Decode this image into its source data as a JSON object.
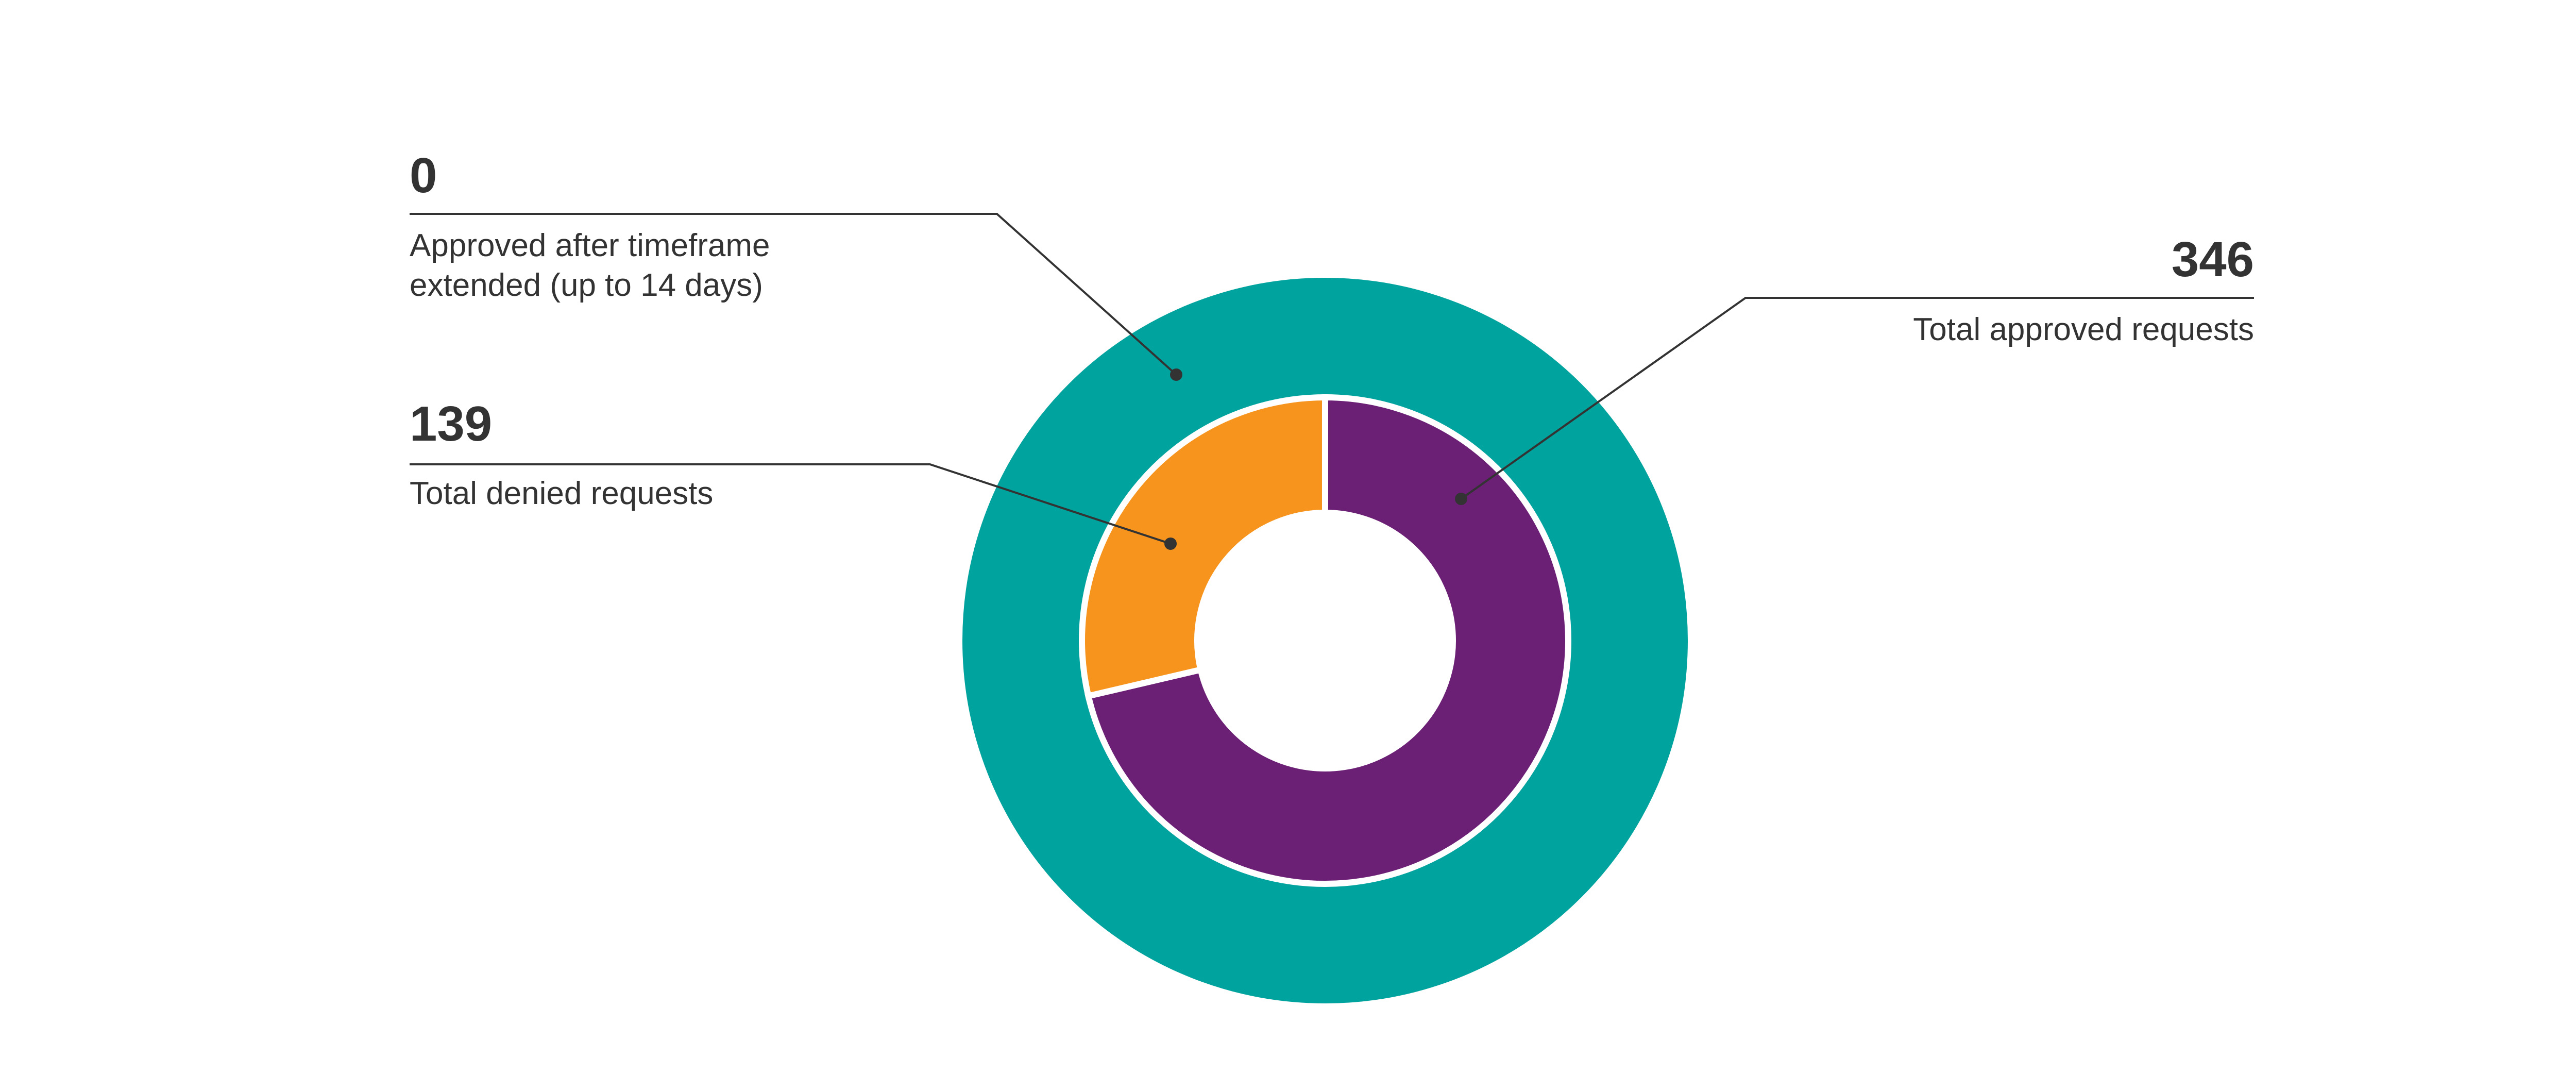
{
  "chart_data": {
    "type": "pie",
    "subtype": "nested-donut",
    "title": "",
    "rings": [
      {
        "ring": "outer",
        "slices": [
          {
            "label": "Approved after timeframe extended (up to 14 days)",
            "value": 0,
            "color": "#00A39D"
          }
        ],
        "filled_color": "#00A39D"
      },
      {
        "ring": "inner",
        "slices": [
          {
            "label": "Total approved requests",
            "value": 346,
            "color": "#6B1F75"
          },
          {
            "label": "Total denied requests",
            "value": 139,
            "color": "#F7941D"
          }
        ]
      }
    ],
    "callouts": [
      {
        "id": "extended",
        "value": "0",
        "label_lines": [
          "Approved after timeframe",
          "extended (up to 14 days)"
        ]
      },
      {
        "id": "denied",
        "value": "139",
        "label_lines": [
          "Total denied requests"
        ]
      },
      {
        "id": "approved",
        "value": "346",
        "label_lines": [
          "Total approved requests"
        ]
      }
    ],
    "legend": "none",
    "grid": false
  },
  "colors": {
    "outer_ring": "#00A39D",
    "approved": "#6B1F75",
    "denied": "#F7941D",
    "text": "#333333",
    "background": "#FFFFFF"
  }
}
